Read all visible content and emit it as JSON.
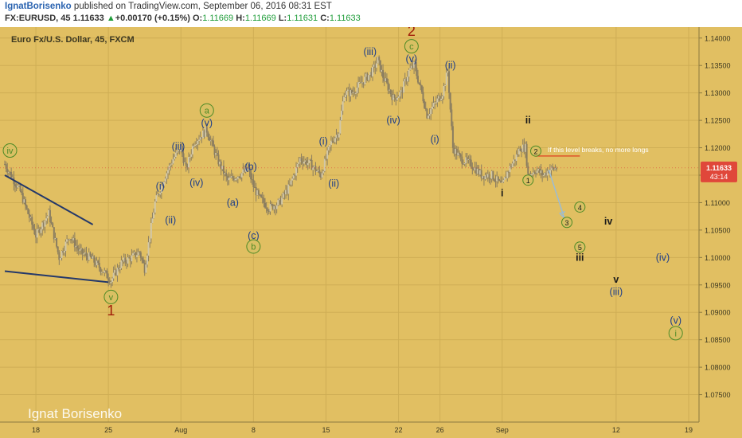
{
  "header": {
    "author": "IgnatBorisenko",
    "published": "published on TradingView.com, September 06, 2016 08:31 EST",
    "symbol": "FX:EURUSD, 45",
    "last": "1.11633",
    "change_arrow": "▲",
    "change": "+0.00170 (+0.15%)",
    "o_label": "O:",
    "o": "1.11669",
    "h_label": "H:",
    "h": "1.11669",
    "l_label": "L:",
    "l": "1.11631",
    "c_label": "C:",
    "c": "1.11633"
  },
  "colors": {
    "background": "#e1bf62",
    "grid": "#cfae55",
    "candle": "#8a7d60",
    "wave_label": "#1c3d8a",
    "circle_fill": "#d9c063",
    "circle_stroke": "#4d8a26",
    "wave_red": "#a01c08",
    "projection": "#9bbcd4",
    "level_line": "#e0542c",
    "price_tag": "#e0473a"
  },
  "watermark": "Ignat Borisenko",
  "chart_data": {
    "type": "candlestick",
    "title": "Euro Fx/U.S. Dollar, 45, FXCM",
    "y_range": [
      1.07,
      1.142
    ],
    "y_ticks": [
      "1.14000",
      "1.13500",
      "1.13000",
      "1.12500",
      "1.12000",
      "1.11500",
      "1.11000",
      "1.10500",
      "1.10000",
      "1.09500",
      "1.09000",
      "1.08500",
      "1.08000",
      "1.07500"
    ],
    "y_tick_values": [
      1.14,
      1.135,
      1.13,
      1.125,
      1.12,
      1.115,
      1.11,
      1.105,
      1.1,
      1.095,
      1.09,
      1.085,
      1.08,
      1.075
    ],
    "x_range": [
      "2016-07-15",
      "2016-09-20"
    ],
    "x_ticks": [
      {
        "label": "18",
        "date": "2016-07-18"
      },
      {
        "label": "25",
        "date": "2016-07-25"
      },
      {
        "label": "Aug",
        "date": "2016-08-01"
      },
      {
        "label": "8",
        "date": "2016-08-08"
      },
      {
        "label": "15",
        "date": "2016-08-15"
      },
      {
        "label": "22",
        "date": "2016-08-22"
      },
      {
        "label": "26",
        "date": "2016-08-26"
      },
      {
        "label": "Sep",
        "date": "2016-09-01"
      },
      {
        "label": "12",
        "date": "2016-09-12"
      },
      {
        "label": "19",
        "date": "2016-09-19"
      }
    ],
    "price_path": [
      [
        "2016-07-15 00:00",
        1.117
      ],
      [
        "2016-07-16 12:00",
        1.112
      ],
      [
        "2016-07-18 00:00",
        1.104
      ],
      [
        "2016-07-19 06:00",
        1.108
      ],
      [
        "2016-07-20 06:00",
        1.1
      ],
      [
        "2016-07-21 06:00",
        1.104
      ],
      [
        "2016-07-22 06:00",
        1.101
      ],
      [
        "2016-07-23 06:00",
        1.1
      ],
      [
        "2016-07-24 12:00",
        1.0975
      ],
      [
        "2016-07-25 06:00",
        1.0958
      ],
      [
        "2016-07-26 06:00",
        1.099
      ],
      [
        "2016-07-27 06:00",
        1.1
      ],
      [
        "2016-07-28 00:00",
        1.101
      ],
      [
        "2016-07-28 12:00",
        1.098
      ],
      [
        "2016-07-29 00:00",
        1.104
      ],
      [
        "2016-07-29 12:00",
        1.11
      ],
      [
        "2016-07-30 12:00",
        1.115
      ],
      [
        "2016-07-31 06:00",
        1.118
      ],
      [
        "2016-08-01 00:00",
        1.12
      ],
      [
        "2016-08-01 12:00",
        1.116
      ],
      [
        "2016-08-02 06:00",
        1.121
      ],
      [
        "2016-08-03 12:00",
        1.1232
      ],
      [
        "2016-08-04 12:00",
        1.118
      ],
      [
        "2016-08-05 12:00",
        1.114
      ],
      [
        "2016-08-06 12:00",
        1.115
      ],
      [
        "2016-08-07 12:00",
        1.116
      ],
      [
        "2016-08-08 00:00",
        1.113
      ],
      [
        "2016-08-08 12:00",
        1.111
      ],
      [
        "2016-08-09 12:00",
        1.109
      ],
      [
        "2016-08-10 12:00",
        1.11
      ],
      [
        "2016-08-11 12:00",
        1.113
      ],
      [
        "2016-08-12 12:00",
        1.118
      ],
      [
        "2016-08-13 12:00",
        1.117
      ],
      [
        "2016-08-14 12:00",
        1.115
      ],
      [
        "2016-08-15 00:00",
        1.118
      ],
      [
        "2016-08-15 12:00",
        1.121
      ],
      [
        "2016-08-16 06:00",
        1.123
      ],
      [
        "2016-08-16 18:00",
        1.13
      ],
      [
        "2016-08-17 12:00",
        1.13
      ],
      [
        "2016-08-18 12:00",
        1.132
      ],
      [
        "2016-08-19 12:00",
        1.134
      ],
      [
        "2016-08-20 00:00",
        1.136
      ],
      [
        "2016-08-20 12:00",
        1.133
      ],
      [
        "2016-08-21 12:00",
        1.129
      ],
      [
        "2016-08-22 06:00",
        1.13
      ],
      [
        "2016-08-23 00:00",
        1.134
      ],
      [
        "2016-08-23 12:00",
        1.135
      ],
      [
        "2016-08-24 06:00",
        1.13
      ],
      [
        "2016-08-24 18:00",
        1.126
      ],
      [
        "2016-08-25 12:00",
        1.128
      ],
      [
        "2016-08-26 06:00",
        1.13
      ],
      [
        "2016-08-26 18:00",
        1.134
      ],
      [
        "2016-08-27 06:00",
        1.12
      ],
      [
        "2016-08-28 00:00",
        1.118
      ],
      [
        "2016-08-29 00:00",
        1.117
      ],
      [
        "2016-08-30 00:00",
        1.115
      ],
      [
        "2016-08-31 00:00",
        1.115
      ],
      [
        "2016-09-01 00:00",
        1.113
      ],
      [
        "2016-09-01 12:00",
        1.1155
      ],
      [
        "2016-09-02 06:00",
        1.118
      ],
      [
        "2016-09-02 18:00",
        1.12
      ],
      [
        "2016-09-03 06:00",
        1.12
      ],
      [
        "2016-09-03 12:00",
        1.115
      ],
      [
        "2016-09-04 06:00",
        1.116
      ],
      [
        "2016-09-05 00:00",
        1.115
      ],
      [
        "2016-09-05 12:00",
        1.116
      ],
      [
        "2016-09-06 08:00",
        1.1163
      ]
    ],
    "current_price": "1.11633",
    "time_to_close": "43:14",
    "trendlines": [
      {
        "from": [
          "2016-07-15 00:00",
          1.115
        ],
        "to": [
          "2016-07-23 12:00",
          1.106
        ]
      },
      {
        "from": [
          "2016-07-15 00:00",
          1.0975
        ],
        "to": [
          "2016-07-25 00:00",
          1.0955
        ]
      }
    ],
    "level_line": {
      "from": "2016-09-04 06:00",
      "to": "2016-09-08 12:00",
      "price": 1.1185,
      "label": "If this level breaks, no more longs"
    },
    "projection_arrow": {
      "from": [
        "2016-09-05 12:00",
        1.116
      ],
      "to": [
        "2016-09-07 00:00",
        1.1072
      ]
    },
    "wave_labels": [
      {
        "text": "iv",
        "style": "circle",
        "date": "2016-07-15 12:00",
        "price": 1.1195
      },
      {
        "text": "v",
        "style": "circle",
        "date": "2016-07-25 06:00",
        "price": 1.0928
      },
      {
        "text": "1",
        "style": "red",
        "date": "2016-07-25 06:00",
        "price": 1.09
      },
      {
        "text": "(i)",
        "style": "plain",
        "date": "2016-07-30 00:00",
        "price": 1.113
      },
      {
        "text": "(ii)",
        "style": "plain",
        "date": "2016-07-31 00:00",
        "price": 1.1068
      },
      {
        "text": "(iii)",
        "style": "plain",
        "date": "2016-07-31 18:00",
        "price": 1.1202
      },
      {
        "text": "(iv)",
        "style": "plain",
        "date": "2016-08-02 12:00",
        "price": 1.1136
      },
      {
        "text": "a",
        "style": "circle",
        "date": "2016-08-03 12:00",
        "price": 1.1268
      },
      {
        "text": "(v)",
        "style": "plain",
        "date": "2016-08-03 12:00",
        "price": 1.1245
      },
      {
        "text": "(a)",
        "style": "plain",
        "date": "2016-08-06 00:00",
        "price": 1.11
      },
      {
        "text": "(b)",
        "style": "plain",
        "date": "2016-08-07 18:00",
        "price": 1.1165
      },
      {
        "text": "(c)",
        "style": "plain",
        "date": "2016-08-08 00:00",
        "price": 1.104
      },
      {
        "text": "b",
        "style": "circle",
        "date": "2016-08-08 00:00",
        "price": 1.102
      },
      {
        "text": "(i)",
        "style": "plain",
        "date": "2016-08-14 18:00",
        "price": 1.1212
      },
      {
        "text": "(ii)",
        "style": "plain",
        "date": "2016-08-15 18:00",
        "price": 1.1135
      },
      {
        "text": "(iii)",
        "style": "plain",
        "date": "2016-08-19 06:00",
        "price": 1.1375
      },
      {
        "text": "2",
        "style": "red",
        "date": "2016-08-23 06:00",
        "price": 1.141
      },
      {
        "text": "c",
        "style": "circle",
        "date": "2016-08-23 06:00",
        "price": 1.1385
      },
      {
        "text": "(v)",
        "style": "plain",
        "date": "2016-08-23 06:00",
        "price": 1.1362
      },
      {
        "text": "(iv)",
        "style": "plain",
        "date": "2016-08-21 12:00",
        "price": 1.125
      },
      {
        "text": "(i)",
        "style": "plain",
        "date": "2016-08-25 12:00",
        "price": 1.1215
      },
      {
        "text": "(ii)",
        "style": "plain",
        "date": "2016-08-27 00:00",
        "price": 1.135
      },
      {
        "text": "ii",
        "style": "dark",
        "date": "2016-09-03 12:00",
        "price": 1.125
      },
      {
        "text": "2",
        "style": "circle-small",
        "date": "2016-09-04 06:00",
        "price": 1.1194
      },
      {
        "text": "1",
        "style": "circle-small",
        "date": "2016-09-03 12:00",
        "price": 1.1141
      },
      {
        "text": "i",
        "style": "dark",
        "date": "2016-09-01 00:00",
        "price": 1.1117
      },
      {
        "text": "4",
        "style": "circle-small",
        "date": "2016-09-08 12:00",
        "price": 1.1092
      },
      {
        "text": "3",
        "style": "circle-small",
        "date": "2016-09-07 06:00",
        "price": 1.1064
      },
      {
        "text": "iv",
        "style": "dark",
        "date": "2016-09-11 06:00",
        "price": 1.1066
      },
      {
        "text": "5",
        "style": "circle-small",
        "date": "2016-09-08 12:00",
        "price": 1.1019
      },
      {
        "text": "iii",
        "style": "dark",
        "date": "2016-09-08 12:00",
        "price": 1.1
      },
      {
        "text": "(iv)",
        "style": "plain",
        "date": "2016-09-16 12:00",
        "price": 1.1
      },
      {
        "text": "v",
        "style": "dark",
        "date": "2016-09-12 00:00",
        "price": 1.096
      },
      {
        "text": "(iii)",
        "style": "plain",
        "date": "2016-09-12 00:00",
        "price": 1.0937
      },
      {
        "text": "(v)",
        "style": "plain",
        "date": "2016-09-17 18:00",
        "price": 1.0885
      },
      {
        "text": "i",
        "style": "circle",
        "date": "2016-09-17 18:00",
        "price": 1.0862
      }
    ]
  }
}
